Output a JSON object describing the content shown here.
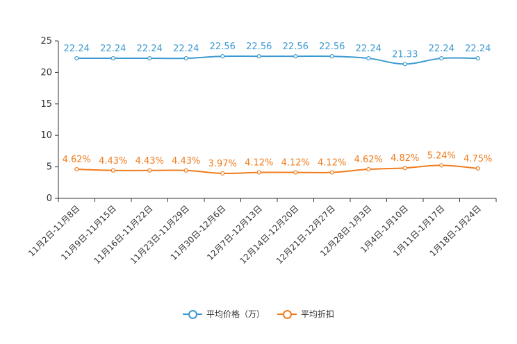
{
  "chart_data": {
    "type": "line",
    "title": "",
    "xlabel": "",
    "ylabel": "",
    "ylim": [
      0,
      25
    ],
    "yticks": [
      0,
      5,
      10,
      15,
      20,
      25
    ],
    "categories": [
      "11月2日-11月8日",
      "11月9日-11月15日",
      "11月16日-11月22日",
      "11月23日-11月29日",
      "11月30日-12月6日",
      "12月7日-12月13日",
      "12月14日-12月20日",
      "12月21日-12月27日",
      "12月28日-1月3日",
      "1月4日-1月10日",
      "1月11日-1月17日",
      "1月18日-1月24日"
    ],
    "series": [
      {
        "name": "平均价格（万）",
        "color": "#3c9ad1",
        "values": [
          22.24,
          22.24,
          22.24,
          22.24,
          22.56,
          22.56,
          22.56,
          22.56,
          22.24,
          21.33,
          22.24,
          22.24
        ],
        "labels": [
          "22.24",
          "22.24",
          "22.24",
          "22.24",
          "22.56",
          "22.56",
          "22.56",
          "22.56",
          "22.24",
          "21.33",
          "22.24",
          "22.24"
        ]
      },
      {
        "name": "平均折扣",
        "color": "#f07c1e",
        "values": [
          4.62,
          4.43,
          4.43,
          4.43,
          3.97,
          4.12,
          4.12,
          4.12,
          4.62,
          4.82,
          5.24,
          4.75
        ],
        "labels": [
          "4.62%",
          "4.43%",
          "4.43%",
          "4.43%",
          "3.97%",
          "4.12%",
          "4.12%",
          "4.12%",
          "4.62%",
          "4.82%",
          "5.24%",
          "4.75%"
        ]
      }
    ],
    "legend_position": "bottom"
  }
}
